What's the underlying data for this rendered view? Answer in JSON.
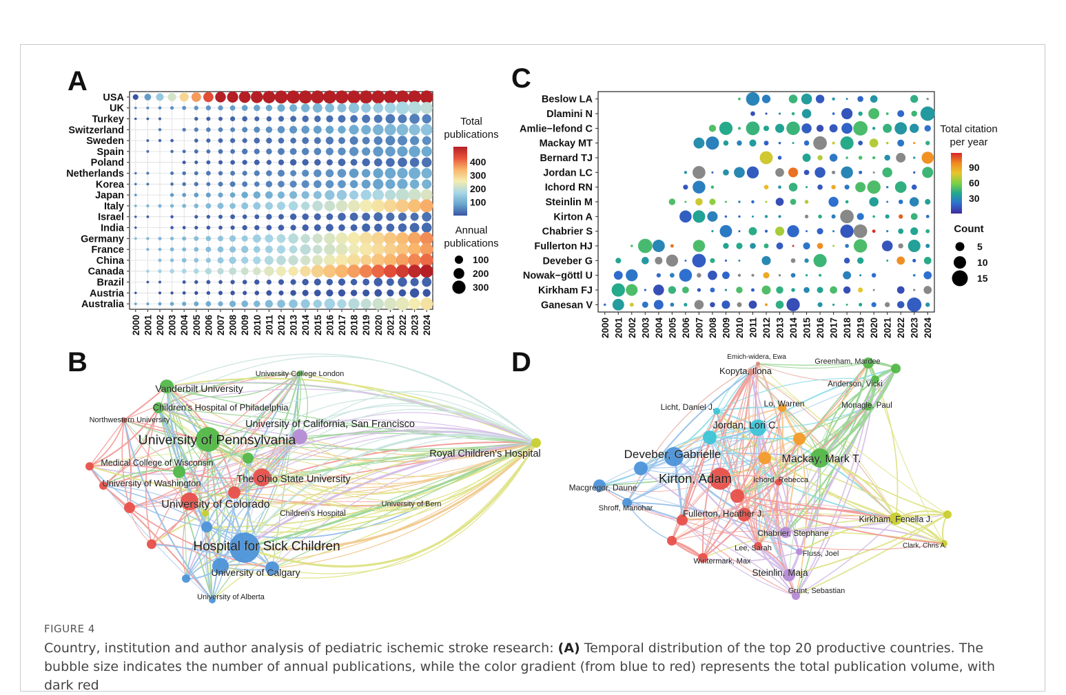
{
  "figure": {
    "label": "FIGURE 4",
    "caption_pre": "Country, institution and author analysis of pediatric ischemic stroke research: ",
    "caption_bold": "(A)",
    "caption_post": " Temporal distribution of the top 20 productive countries. The bubble size indicates the number of annual publications, while the color gradient (from blue to red) represents the total publication volume, with dark red"
  },
  "panels": {
    "a": "A",
    "b": "B",
    "c": "C",
    "d": "D"
  },
  "colors": {
    "scale": [
      "#3a55a4",
      "#6aa7cf",
      "#a8d6e6",
      "#f4ecb0",
      "#f9b56b",
      "#e8553a",
      "#b41f26"
    ],
    "viridis_like": [
      "#3f2b9a",
      "#2e6fd0",
      "#21a88e",
      "#7bd145",
      "#e7c52a",
      "#f08a22",
      "#d8262a"
    ]
  },
  "chart_data": [
    {
      "type": "scatter",
      "title": "",
      "years": [
        "2000",
        "2001",
        "2002",
        "2003",
        "2004",
        "2005",
        "2006",
        "2007",
        "2008",
        "2009",
        "2010",
        "2011",
        "2012",
        "2013",
        "2014",
        "2015",
        "2016",
        "2017",
        "2018",
        "2019",
        "2020",
        "2021",
        "2022",
        "2023",
        "2024"
      ],
      "countries": [
        "USA",
        "UK",
        "Turkey",
        "Switzerland",
        "Sweden",
        "Spain",
        "Poland",
        "Netherlands",
        "Korea",
        "Japan",
        "Italy",
        "Israel",
        "India",
        "Germany",
        "France",
        "China",
        "Canada",
        "Brazil",
        "Austria",
        "Australia"
      ],
      "totals": [
        470,
        210,
        110,
        170,
        120,
        140,
        100,
        150,
        150,
        230,
        310,
        100,
        95,
        330,
        320,
        350,
        430,
        90,
        80,
        260
      ],
      "legend_color_title": "Total publications",
      "legend_color_ticks": [
        "400",
        "300",
        "200",
        "100"
      ],
      "legend_size_title": "Annual publications",
      "legend_size_ticks": [
        "100",
        "200",
        "300"
      ]
    },
    {
      "type": "scatter",
      "title": "",
      "years": [
        "2000",
        "2001",
        "2002",
        "2003",
        "2004",
        "2005",
        "2006",
        "2007",
        "2008",
        "2009",
        "2010",
        "2011",
        "2012",
        "2013",
        "2014",
        "2015",
        "2016",
        "2017",
        "2018",
        "2019",
        "2020",
        "2021",
        "2022",
        "2023",
        "2024"
      ],
      "authors": [
        "Beslow LA",
        "Dlamini N",
        "Amlie−lefond C",
        "Mackay MT",
        "Bernard TJ",
        "Jordan LC",
        "Ichord RN",
        "Steinlin M",
        "Kirton A",
        "Chabrier S",
        "Fullerton HJ",
        "Deveber G",
        "Nowak−göttl U",
        "Kirkham FJ",
        "Ganesan V"
      ],
      "start_year": [
        10,
        10,
        8,
        7,
        7,
        6,
        6,
        4,
        6,
        8,
        1,
        1,
        1,
        1,
        0
      ],
      "legend_color_title": "Total citation per year",
      "legend_color_ticks": [
        "90",
        "60",
        "30"
      ],
      "legend_size_title": "Count",
      "legend_size_ticks": [
        "5",
        "10",
        "15"
      ]
    }
  ],
  "network_b": {
    "labels": [
      "University College London",
      "Vanderbilt University",
      "Children's Hospital of Philadelphia",
      "Northwestern University",
      "University of California, San Francisco",
      "University of Pennsylvania",
      "Royal Children's Hospital",
      "Medical College of Wisconsin",
      "The Ohio State University",
      "University of Washington",
      "University of Colorado",
      "University of Bern",
      "Children's Hospital",
      "Hospital for Sick Children",
      "University of Calgary",
      "University of Alberta"
    ]
  },
  "network_d": {
    "labels": [
      "Emich-widera, Ewa",
      "Kopyta, Ilona",
      "Greenham, Mardee",
      "Anderson, Vicki",
      "Licht, Daniel J.",
      "Lo, Warren",
      "Monagle, Paul",
      "Jordan, Lori C.",
      "Deveber, Gabrielle",
      "Mackay, Mark T.",
      "Kirton, Adam",
      "Ichord, Rebecca",
      "Macgregor, Daune",
      "Shroff, Manohar",
      "Fullerton, Heather J.",
      "Kirkham, Fenella J.",
      "Chabrier, Stephane",
      "Lee, Sarah",
      "Clark, Chris A.",
      "Fluss, Joel",
      "Wintermark, Max",
      "Steinlin, Maja",
      "Grunt, Sebastian"
    ]
  }
}
